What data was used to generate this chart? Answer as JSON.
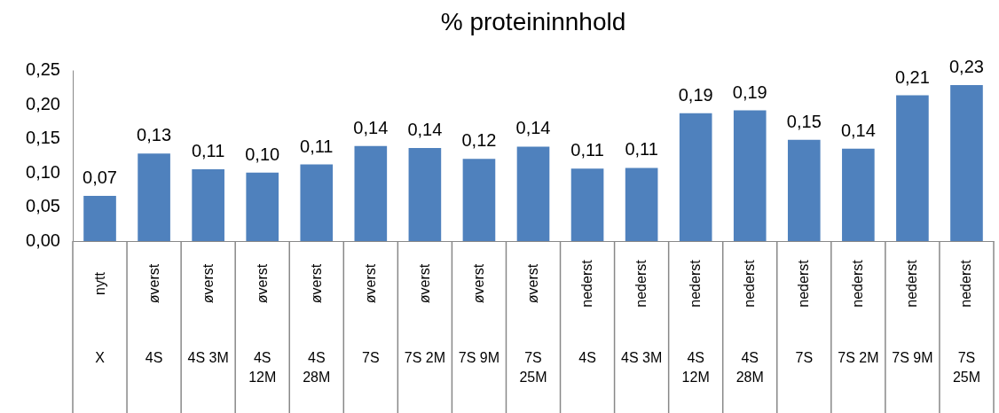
{
  "chart_data": {
    "type": "bar",
    "title": "% proteininnhold",
    "categories": [
      "nytt\nX",
      "øverst\n4S",
      "øverst\n4S 3M",
      "øverst\n4S 12M",
      "øverst\n4S 28M",
      "øverst\n7S",
      "øverst\n7S 2M",
      "øverst\n7S 9M",
      "øverst\n7S 25M",
      "nederst\n4S",
      "nederst\n4S 3M",
      "nederst\n4S 12M",
      "nederst\n4S 28M",
      "nederst\n7S",
      "nederst\n7S 2M",
      "nederst\n7S 9M",
      "nederst\n7S 25M"
    ],
    "values": [
      0.066,
      0.128,
      0.105,
      0.1,
      0.112,
      0.139,
      0.136,
      0.12,
      0.138,
      0.106,
      0.107,
      0.187,
      0.191,
      0.148,
      0.135,
      0.213,
      0.228
    ],
    "value_labels": [
      "0,07",
      "0,13",
      "0,11",
      "0,10",
      "0,11",
      "0,14",
      "0,14",
      "0,12",
      "0,14",
      "0,11",
      "0,11",
      "0,19",
      "0,19",
      "0,15",
      "0,14",
      "0,21",
      "0,23"
    ],
    "color": "#4f81bd",
    "ylim": [
      0,
      0.25
    ],
    "yticks": [
      {
        "value": 0,
        "label": "0,00"
      },
      {
        "value": 0.05,
        "label": "0,05"
      },
      {
        "value": 0.1,
        "label": "0,10"
      },
      {
        "value": 0.15,
        "label": "0,15"
      },
      {
        "value": 0.2,
        "label": "0,20"
      },
      {
        "value": 0.25,
        "label": "0,25"
      }
    ],
    "grid": false
  }
}
